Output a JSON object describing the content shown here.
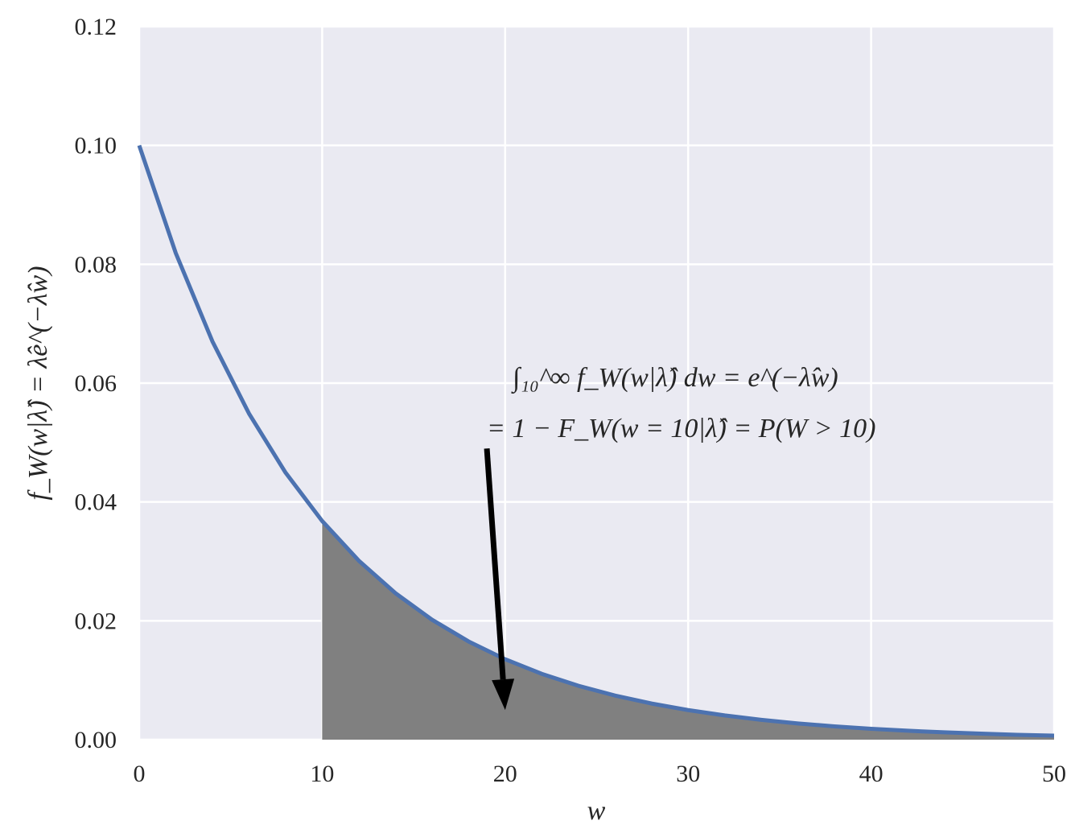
{
  "chart_data": {
    "type": "line",
    "x_label": "w",
    "y_label": "f_W(w|λ̂) = λ̂e^(−λ̂w)",
    "annotation": [
      "∫₁₀^∞ f_W(w|λ̂) dw = e^(−λ̂w)",
      "= 1 − F_W(w = 10|λ̂) = P(W > 10)"
    ],
    "arrow": {
      "from": [
        19,
        0.049
      ],
      "to": [
        20,
        0.005
      ]
    },
    "series": [
      {
        "kind": "line",
        "color": "#4c72b0",
        "x": [
          0,
          2,
          4,
          6,
          8,
          10,
          12,
          14,
          16,
          18,
          20,
          22,
          24,
          26,
          28,
          30,
          32,
          34,
          36,
          38,
          40,
          42,
          44,
          46,
          48,
          50
        ],
        "values": [
          0.1,
          0.08187,
          0.06703,
          0.05488,
          0.04493,
          0.03679,
          0.03012,
          0.02466,
          0.02019,
          0.01653,
          0.01353,
          0.01108,
          0.00907,
          0.00743,
          0.00608,
          0.00498,
          0.00408,
          0.00334,
          0.00273,
          0.00224,
          0.00183,
          0.0015,
          0.00123,
          0.00101,
          0.00082,
          0.00067
        ]
      },
      {
        "kind": "area",
        "color": "#808080",
        "x": [
          10,
          12,
          14,
          16,
          18,
          20,
          22,
          24,
          26,
          28,
          30,
          32,
          34,
          36,
          38,
          40,
          42,
          44,
          46,
          48,
          50
        ],
        "values": [
          0.03679,
          0.03012,
          0.02466,
          0.02019,
          0.01653,
          0.01353,
          0.01108,
          0.00907,
          0.00743,
          0.00608,
          0.00498,
          0.00408,
          0.00334,
          0.00273,
          0.00224,
          0.00183,
          0.0015,
          0.00123,
          0.00101,
          0.00082,
          0.00067
        ]
      }
    ],
    "xlim": [
      0,
      50
    ],
    "ylim": [
      0,
      0.12
    ],
    "xticks": [
      0,
      10,
      20,
      30,
      40,
      50
    ],
    "yticks": [
      {
        "value": 0,
        "label": "0.00"
      },
      {
        "value": 0.02,
        "label": "0.02"
      },
      {
        "value": 0.04,
        "label": "0.04"
      },
      {
        "value": 0.06,
        "label": "0.06"
      },
      {
        "value": 0.08,
        "label": "0.08"
      },
      {
        "value": 0.1,
        "label": "0.10"
      },
      {
        "value": 0.12,
        "label": "0.12"
      }
    ],
    "grid": true,
    "background": "#eaeaf2"
  }
}
